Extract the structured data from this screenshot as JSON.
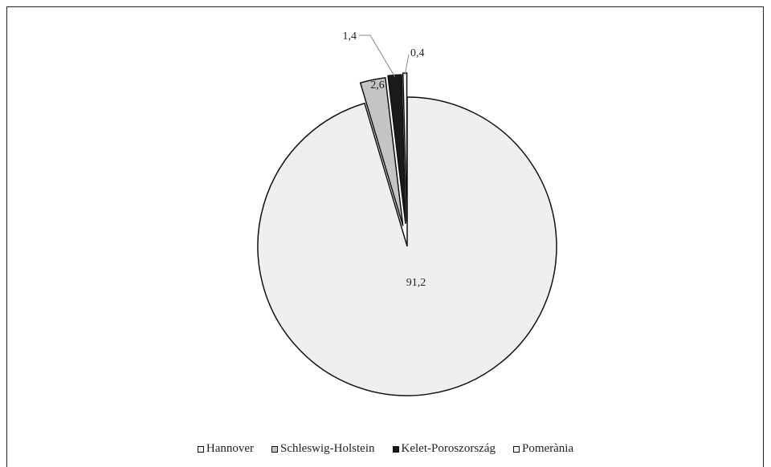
{
  "chart_data": {
    "type": "pie",
    "series": [
      {
        "name": "Hannover",
        "value": 91.2,
        "label": "91,2",
        "color": "#efefef"
      },
      {
        "name": "Schleswig-Holstein",
        "value": 2.6,
        "label": "2,6",
        "color": "#c4c4c4"
      },
      {
        "name": "Kelet-Poroszország",
        "value": 1.4,
        "label": "1,4",
        "color": "#1a1a1a"
      },
      {
        "name": "Pomerània",
        "value": 0.4,
        "label": "0,4",
        "color": "#f4f4f4"
      }
    ],
    "legend_position": "bottom"
  }
}
